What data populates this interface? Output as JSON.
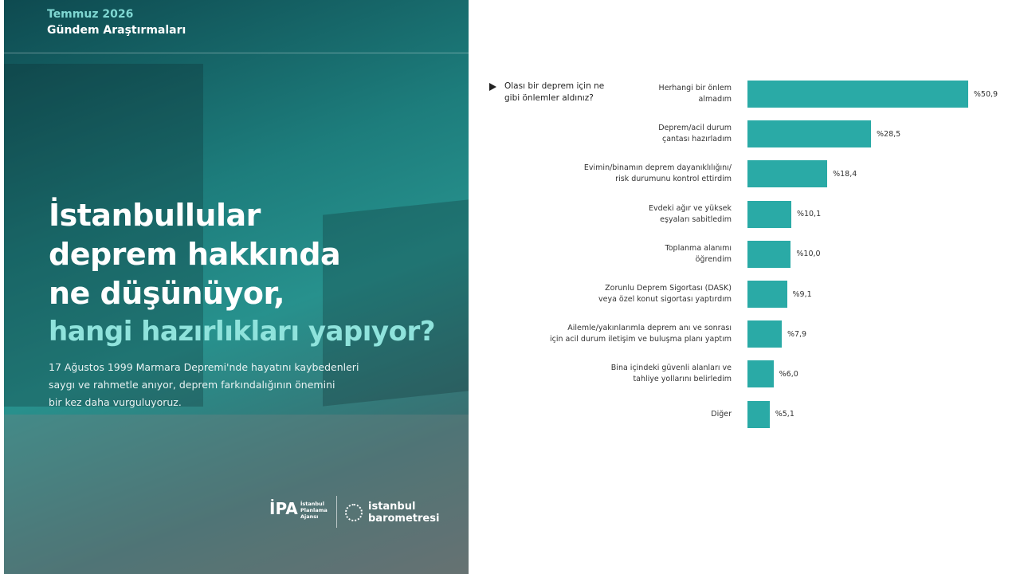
{
  "poster": {
    "date": "Temmuz 2026",
    "series_name": "Gündem Araştırmaları",
    "title_lines": [
      "İstanbullular",
      "deprem hakkında",
      "ne düşünüyor,"
    ],
    "title_highlight": "hangi hazırlıkları yapıyor?",
    "body_lines": [
      "17 Ağustos 1999 Marmara Depremi'nde hayatını kaybedenleri",
      "saygı ve rahmetle anıyor, deprem farkındalığının önemini",
      "bir kez daha vurguluyoruz."
    ],
    "logo_ipa_mark": "İPA",
    "logo_ipa_text": "İstanbul\nPlanlama\nAjansı",
    "logo_barometre": "istanbul\nbarometresi"
  },
  "chart_data": {
    "type": "bar",
    "orientation": "horizontal",
    "subtitle": "Olası bir deprem için ne\ngibi önlemler aldınız?",
    "categories": [
      "Herhangi bir önlem\nalmadım",
      "Deprem/acil durum\nçantası hazırladım",
      "Evimin/binamın deprem dayanıklılığını/\nrisk durumunu kontrol ettirdim",
      "Evdeki ağır ve yüksek\neşyaları sabitledim",
      "Toplanma alanımı\nöğrendim",
      "Zorunlu Deprem  Sigortası (DASK)\nveya özel konut sigortası yaptırdım",
      "Ailemle/yakınlarımla deprem anı ve sonrası\niçin acil durum iletişim ve buluşma planı yaptım",
      "Bina içindeki güvenli alanları ve\ntahliye yollarını belirledim",
      "Diğer"
    ],
    "values": [
      50.9,
      28.5,
      18.4,
      10.1,
      10.0,
      9.1,
      7.9,
      6.0,
      5.1
    ],
    "value_labels": [
      "%50,9",
      "%28,5",
      "%18,4",
      "%10,1",
      "%10,0",
      "%9,1",
      "%7,9",
      "%6,0",
      "%5,1"
    ],
    "color": "#2aaaa6"
  }
}
